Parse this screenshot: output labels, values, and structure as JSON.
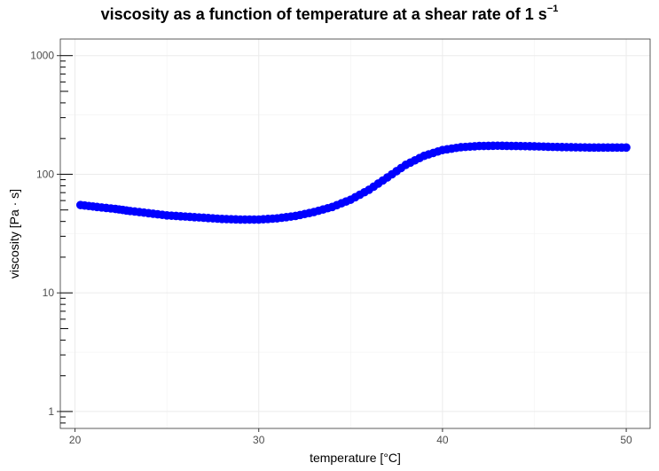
{
  "chart_data": {
    "type": "scatter",
    "title": "viscosity as a function of temperature at a shear rate of 1 s",
    "title_superscript": "−1",
    "xlabel": "temperature [°C]",
    "ylabel": "viscosity [Pa · s]",
    "xlim": [
      19.2,
      51.3
    ],
    "ylim": [
      0.72,
      1380
    ],
    "y_scale": "log",
    "grid": true,
    "legend": "none",
    "x_ticks": [
      20,
      30,
      40,
      50
    ],
    "x_tick_labels": [
      "20",
      "30",
      "40",
      "50"
    ],
    "y_ticks": [
      1,
      10,
      100,
      1000
    ],
    "y_tick_labels": [
      "1",
      "10",
      "100",
      "1000"
    ],
    "marker_color": "#0000ff",
    "series": [
      {
        "x": [
          20.3,
          21.2,
          22.2,
          23.0,
          24.0,
          25.0,
          26.0,
          27.0,
          28.0,
          29.0,
          30.0,
          31.0,
          32.0,
          33.0,
          34.0,
          35.0,
          36.0,
          37.0,
          38.0,
          39.0,
          40.0,
          41.0,
          42.0,
          43.0,
          44.0,
          45.0,
          46.0,
          47.0,
          48.0,
          49.0,
          50.0
        ],
        "y": [
          55,
          53,
          51,
          49,
          47,
          45,
          44,
          43,
          42,
          41.5,
          41.5,
          42.5,
          44.5,
          48,
          53,
          61,
          74,
          94,
          120,
          143,
          160,
          169,
          173,
          174,
          173,
          172,
          170,
          169,
          168,
          168,
          168
        ]
      }
    ]
  }
}
